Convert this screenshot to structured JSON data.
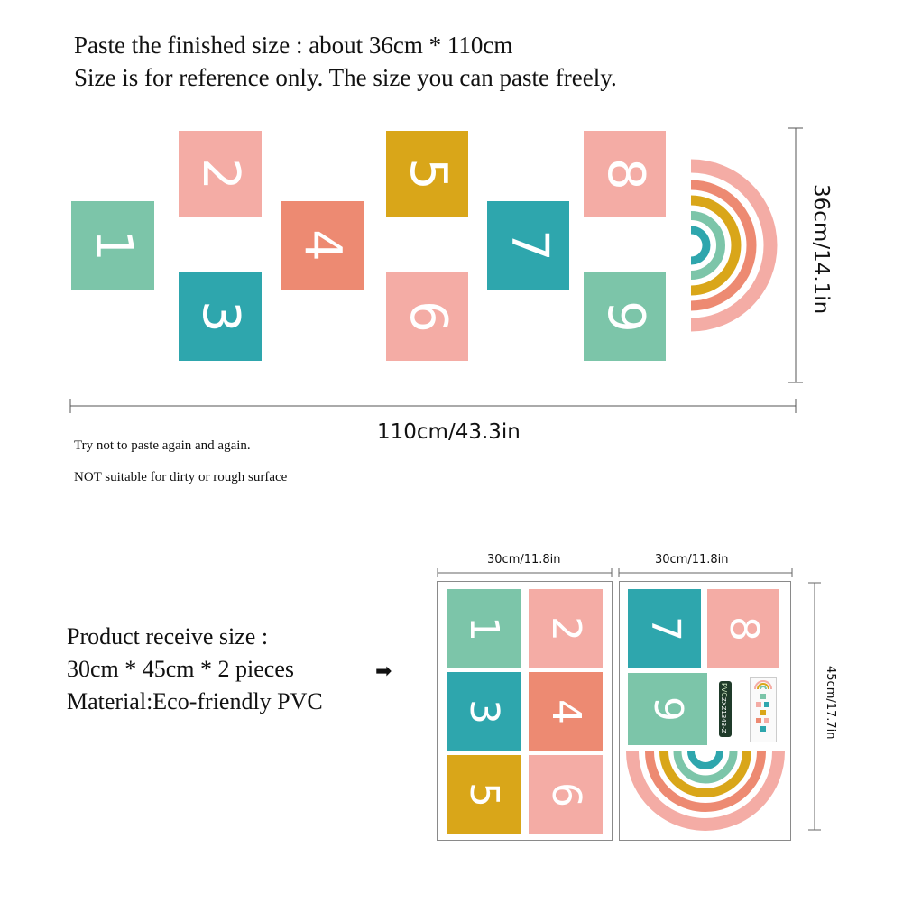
{
  "header": {
    "line1": "Paste the finished size : about 36cm * 110cm",
    "line2": "Size is for reference only. The size you can paste freely."
  },
  "top_tiles": [
    {
      "number": "1",
      "color": "#7cc5a9"
    },
    {
      "number": "2",
      "color": "#f4aca5"
    },
    {
      "number": "3",
      "color": "#2ea6ad"
    },
    {
      "number": "4",
      "color": "#ed8a72"
    },
    {
      "number": "5",
      "color": "#d9a619"
    },
    {
      "number": "6",
      "color": "#f4aca5"
    },
    {
      "number": "7",
      "color": "#2ea6ad"
    },
    {
      "number": "8",
      "color": "#f4aca5"
    },
    {
      "number": "9",
      "color": "#7cc5a9"
    }
  ],
  "rainbow_colors": [
    "#f4aca5",
    "#ed8a72",
    "#d9a619",
    "#7cc5a9",
    "#2ea6ad"
  ],
  "dimensions": {
    "width_label": "110cm/43.3in",
    "height_label": "36cm/14.1in",
    "sheet_width_label": "30cm/11.8in",
    "sheet_height_label": "45cm/17.7in"
  },
  "notes": {
    "note1": "Try not to paste again and again.",
    "note2": "NOT suitable for dirty or rough surface"
  },
  "product": {
    "line1": "Product receive size :",
    "line2": "30cm * 45cm * 2 pieces",
    "line3": "Material:Eco-friendly PVC",
    "arrow": "➡"
  },
  "sheet1_tiles": [
    {
      "number": "1",
      "color": "#7cc5a9"
    },
    {
      "number": "2",
      "color": "#f4aca5"
    },
    {
      "number": "3",
      "color": "#2ea6ad"
    },
    {
      "number": "4",
      "color": "#ed8a72"
    },
    {
      "number": "5",
      "color": "#d9a619"
    },
    {
      "number": "6",
      "color": "#f4aca5"
    }
  ],
  "sheet2_tiles": [
    {
      "number": "7",
      "color": "#2ea6ad"
    },
    {
      "number": "8",
      "color": "#f4aca5"
    },
    {
      "number": "9",
      "color": "#7cc5a9"
    }
  ],
  "package_label": {
    "text1": "PVC",
    "text2": "ZXZ1343-Z"
  }
}
